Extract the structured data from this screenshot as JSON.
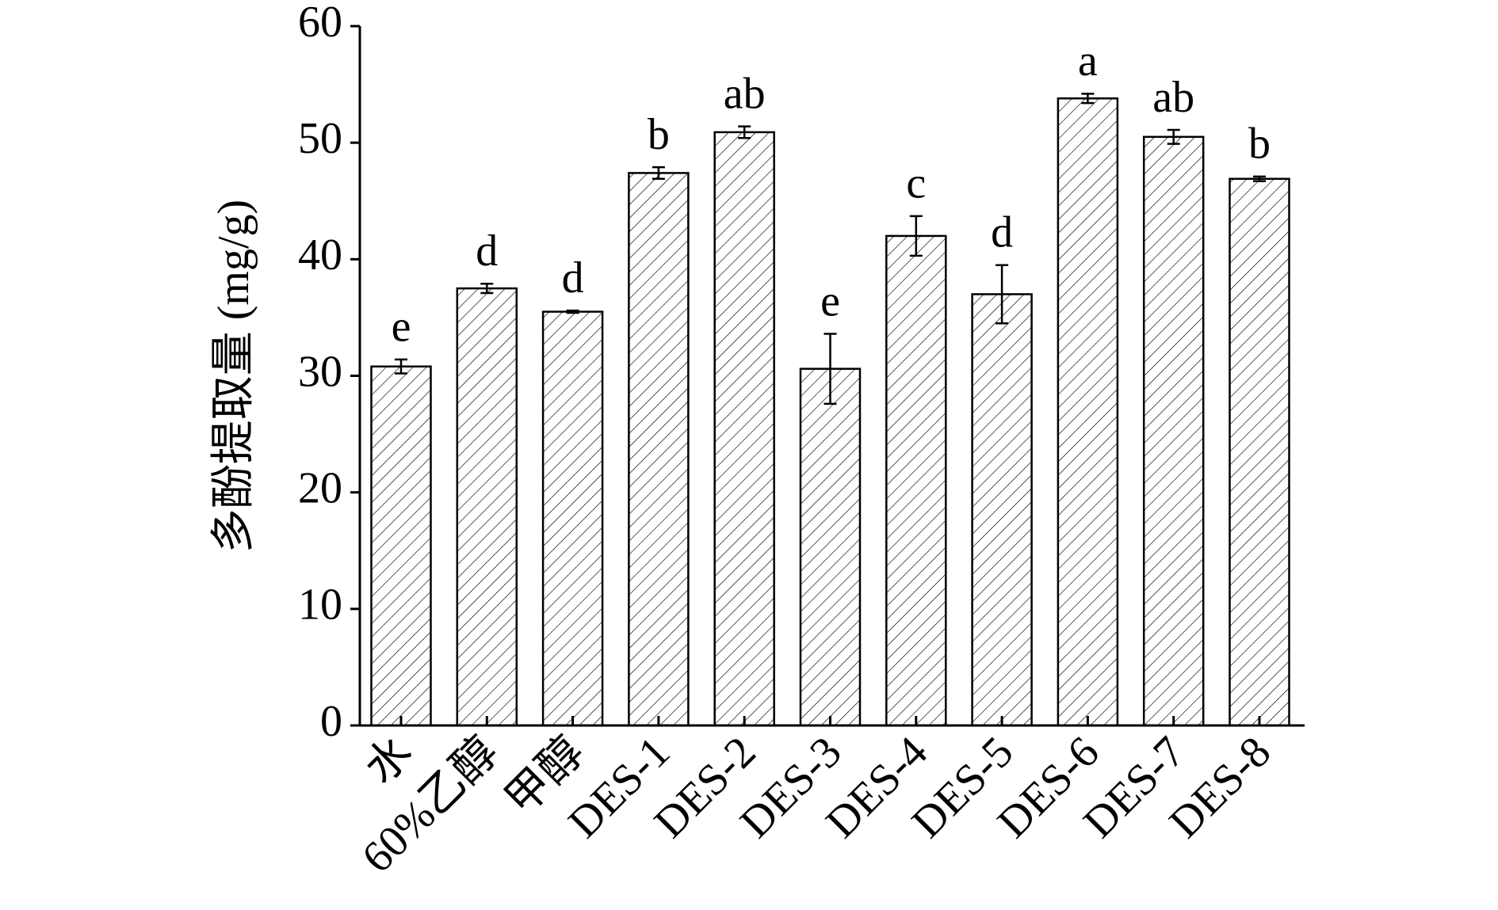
{
  "chart_data": {
    "type": "bar",
    "y_label": "多酚提取量 (mg/g)",
    "categories": [
      "水",
      "60%乙醇",
      "甲醇",
      "DES-1",
      "DES-2",
      "DES-3",
      "DES-4",
      "DES-5",
      "DES-6",
      "DES-7",
      "DES-8"
    ],
    "values": [
      30.8,
      37.5,
      35.5,
      47.4,
      50.9,
      30.6,
      42.0,
      37.0,
      53.8,
      50.5,
      46.9
    ],
    "errors": [
      0.6,
      0.4,
      0.1,
      0.5,
      0.5,
      3.0,
      1.7,
      2.5,
      0.4,
      0.6,
      0.2
    ],
    "letters": [
      "e",
      "d",
      "d",
      "b",
      "ab",
      "e",
      "c",
      "d",
      "a",
      "ab",
      "b"
    ],
    "color": "#000000",
    "ylim": [
      0,
      60
    ],
    "yticks": [
      0,
      10,
      20,
      30,
      40,
      50,
      60
    ],
    "grid": false
  }
}
